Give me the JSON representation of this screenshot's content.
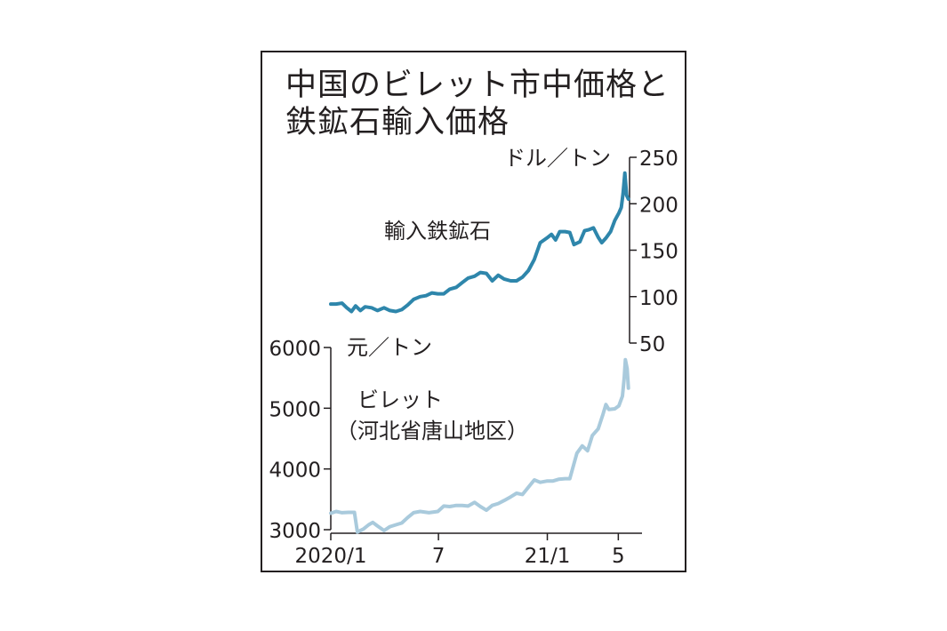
{
  "title": {
    "line1": "中国のビレット市中価格と",
    "line2": "鉄鉱石輸入価格"
  },
  "chart_data": [
    {
      "type": "line",
      "label": "輸入鉄鉱石",
      "unit": "ドル／トン",
      "y_axis_side": "right",
      "ylim": [
        50,
        250
      ],
      "yticks": [
        "250",
        "200",
        "150",
        "100",
        "50"
      ],
      "color": "#2e86ab",
      "points": [
        [
          "2020-01-01",
          92
        ],
        [
          "2020-01-10",
          92
        ],
        [
          "2020-01-20",
          93
        ],
        [
          "2020-01-28",
          88
        ],
        [
          "2020-02-05",
          84
        ],
        [
          "2020-02-12",
          90
        ],
        [
          "2020-02-20",
          85
        ],
        [
          "2020-02-28",
          89
        ],
        [
          "2020-03-10",
          88
        ],
        [
          "2020-03-20",
          85
        ],
        [
          "2020-03-31",
          88
        ],
        [
          "2020-04-10",
          85
        ],
        [
          "2020-04-20",
          84
        ],
        [
          "2020-04-30",
          86
        ],
        [
          "2020-05-10",
          91
        ],
        [
          "2020-05-20",
          97
        ],
        [
          "2020-05-31",
          100
        ],
        [
          "2020-06-10",
          101
        ],
        [
          "2020-06-20",
          104
        ],
        [
          "2020-06-30",
          103
        ],
        [
          "2020-07-10",
          103
        ],
        [
          "2020-07-20",
          108
        ],
        [
          "2020-07-31",
          110
        ],
        [
          "2020-08-10",
          115
        ],
        [
          "2020-08-20",
          120
        ],
        [
          "2020-08-31",
          122
        ],
        [
          "2020-09-10",
          126
        ],
        [
          "2020-09-20",
          125
        ],
        [
          "2020-09-30",
          117
        ],
        [
          "2020-10-10",
          123
        ],
        [
          "2020-10-20",
          119
        ],
        [
          "2020-10-31",
          117
        ],
        [
          "2020-11-10",
          117
        ],
        [
          "2020-11-20",
          121
        ],
        [
          "2020-11-30",
          128
        ],
        [
          "2020-12-10",
          140
        ],
        [
          "2020-12-20",
          158
        ],
        [
          "2020-12-31",
          163
        ],
        [
          "2021-01-08",
          167
        ],
        [
          "2021-01-15",
          161
        ],
        [
          "2021-01-22",
          170
        ],
        [
          "2021-01-31",
          170
        ],
        [
          "2021-02-08",
          169
        ],
        [
          "2021-02-15",
          156
        ],
        [
          "2021-02-25",
          159
        ],
        [
          "2021-03-05",
          171
        ],
        [
          "2021-03-12",
          172
        ],
        [
          "2021-03-20",
          174
        ],
        [
          "2021-03-28",
          164
        ],
        [
          "2021-04-03",
          158
        ],
        [
          "2021-04-10",
          163
        ],
        [
          "2021-04-18",
          170
        ],
        [
          "2021-04-25",
          182
        ],
        [
          "2021-05-02",
          190
        ],
        [
          "2021-05-06",
          196
        ],
        [
          "2021-05-09",
          211
        ],
        [
          "2021-05-12",
          233
        ],
        [
          "2021-05-15",
          209
        ],
        [
          "2021-05-18",
          205
        ]
      ]
    },
    {
      "type": "line",
      "label": "ビレット",
      "sublabel": "（河北省唐山地区）",
      "unit": "元／トン",
      "y_axis_side": "left",
      "ylim": [
        3000,
        6000
      ],
      "yticks": [
        "6000",
        "5000",
        "4000",
        "3000"
      ],
      "color": "#a9cadc",
      "points": [
        [
          "2020-01-01",
          3270
        ],
        [
          "2020-01-10",
          3300
        ],
        [
          "2020-01-20",
          3280
        ],
        [
          "2020-01-31",
          3285
        ],
        [
          "2020-02-10",
          3285
        ],
        [
          "2020-02-15",
          2960
        ],
        [
          "2020-02-25",
          3010
        ],
        [
          "2020-03-05",
          3080
        ],
        [
          "2020-03-12",
          3120
        ],
        [
          "2020-03-20",
          3060
        ],
        [
          "2020-03-31",
          2985
        ],
        [
          "2020-04-10",
          3050
        ],
        [
          "2020-04-20",
          3080
        ],
        [
          "2020-04-30",
          3110
        ],
        [
          "2020-05-10",
          3200
        ],
        [
          "2020-05-20",
          3280
        ],
        [
          "2020-05-31",
          3300
        ],
        [
          "2020-06-15",
          3280
        ],
        [
          "2020-06-30",
          3300
        ],
        [
          "2020-07-10",
          3390
        ],
        [
          "2020-07-20",
          3380
        ],
        [
          "2020-07-31",
          3400
        ],
        [
          "2020-08-10",
          3400
        ],
        [
          "2020-08-20",
          3390
        ],
        [
          "2020-08-31",
          3450
        ],
        [
          "2020-09-10",
          3380
        ],
        [
          "2020-09-20",
          3320
        ],
        [
          "2020-09-30",
          3400
        ],
        [
          "2020-10-10",
          3430
        ],
        [
          "2020-10-20",
          3480
        ],
        [
          "2020-10-31",
          3540
        ],
        [
          "2020-11-10",
          3600
        ],
        [
          "2020-11-20",
          3580
        ],
        [
          "2020-11-30",
          3700
        ],
        [
          "2020-12-10",
          3820
        ],
        [
          "2020-12-20",
          3780
        ],
        [
          "2020-12-31",
          3800
        ],
        [
          "2021-01-10",
          3800
        ],
        [
          "2021-01-20",
          3830
        ],
        [
          "2021-01-31",
          3840
        ],
        [
          "2021-02-08",
          3840
        ],
        [
          "2021-02-20",
          4260
        ],
        [
          "2021-03-01",
          4380
        ],
        [
          "2021-03-10",
          4300
        ],
        [
          "2021-03-18",
          4550
        ],
        [
          "2021-03-28",
          4660
        ],
        [
          "2021-04-05",
          4900
        ],
        [
          "2021-04-10",
          5060
        ],
        [
          "2021-04-15",
          4980
        ],
        [
          "2021-04-25",
          4990
        ],
        [
          "2021-05-02",
          5040
        ],
        [
          "2021-05-08",
          5200
        ],
        [
          "2021-05-11",
          5500
        ],
        [
          "2021-05-13",
          5800
        ],
        [
          "2021-05-16",
          5650
        ],
        [
          "2021-05-18",
          5330
        ]
      ]
    }
  ],
  "x_axis": {
    "range": [
      "2020-01-01",
      "2021-05-20"
    ],
    "ticks": [
      {
        "label": "2020/1",
        "date": "2020-01-01"
      },
      {
        "label": "7",
        "date": "2020-07-01"
      },
      {
        "label": "21/1",
        "date": "2021-01-01"
      },
      {
        "label": "5",
        "date": "2021-05-01"
      }
    ]
  },
  "colors": {
    "ink": "#231f20",
    "iron_ore": "#2e86ab",
    "billet": "#a9cadc"
  }
}
